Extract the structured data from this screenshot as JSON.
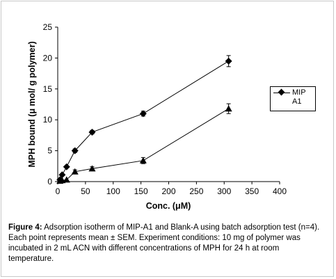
{
  "chart_data": {
    "type": "line",
    "xlabel": "Conc. (μM)",
    "ylabel": "MPH bound (μ mol/ g polymer)",
    "xlim": [
      0,
      400
    ],
    "ylim": [
      0,
      25
    ],
    "x_ticks": [
      0,
      50,
      100,
      150,
      200,
      250,
      300,
      350,
      400
    ],
    "y_ticks": [
      0,
      5,
      10,
      15,
      20,
      25
    ],
    "grid": false,
    "legend_position": "right",
    "series": [
      {
        "name": "MIP A1",
        "marker": "diamond",
        "x": [
          4,
          8,
          16,
          31,
          62,
          154,
          308
        ],
        "y": [
          0.3,
          1.1,
          2.4,
          5.0,
          8.0,
          11.0,
          19.5
        ],
        "err": [
          0,
          0,
          0,
          0.3,
          0.3,
          0.4,
          0.9
        ]
      },
      {
        "marker": "triangle",
        "x": [
          4,
          8,
          16,
          31,
          62,
          154,
          308
        ],
        "y": [
          0.1,
          0.2,
          0.3,
          1.6,
          2.1,
          3.4,
          11.8
        ],
        "err": [
          0,
          0,
          0,
          0.3,
          0.3,
          0.5,
          0.8
        ]
      }
    ]
  },
  "legend": {
    "label": "MIP\nA1"
  },
  "caption": {
    "label": "Figure 4:",
    "text": " Adsorption isotherm of MIP-A1 and Blank-A using batch adsorption test (n=4). Each point represents mean ± SEM. Experiment conditions: 10 mg of polymer was incubated in 2 mL ACN with different concentrations of MPH for 24 h at room temperature."
  }
}
